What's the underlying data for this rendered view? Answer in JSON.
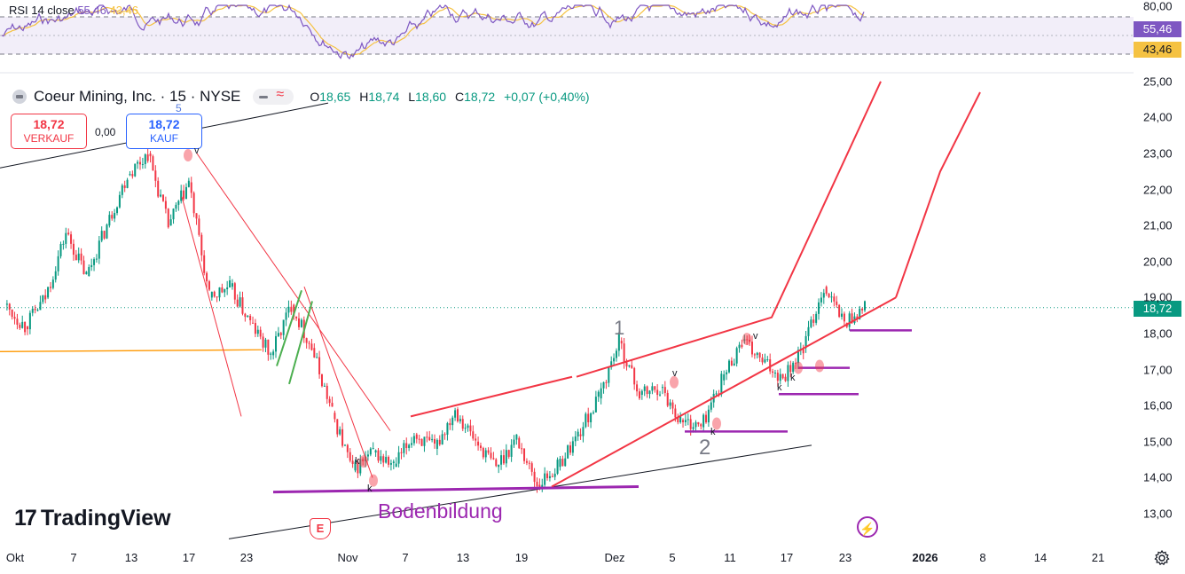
{
  "rsi": {
    "label": "RSI 14 close",
    "value": "55,46",
    "ma_value": "43,46",
    "axis_labels": [
      "80,00"
    ],
    "tag_value": "55,46",
    "tag_ma": "43,46",
    "line_color": "#7e57c2",
    "ma_color": "#f5c242",
    "band_color": "#ede7f6"
  },
  "legend": {
    "symbol": "Coeur Mining, Inc. · 15 · NYSE",
    "o_label": "O",
    "o": "18,65",
    "h_label": "H",
    "h": "18,74",
    "l_label": "L",
    "l": "18,60",
    "c_label": "C",
    "c": "18,72",
    "change": "+0,07 (+0,40%)"
  },
  "trade": {
    "sell_price": "18,72",
    "sell_label": "VERKAUF",
    "spread": "0,00",
    "buy_price": "18,72",
    "buy_label": "KAUF"
  },
  "price_tag": "18,72",
  "brand": "TradingView",
  "annotations": {
    "wave_1": "1",
    "wave_2": "2",
    "wave_5": "5",
    "bottom_text": "Bodenbildung",
    "k_marks": [
      "k",
      "k",
      "k",
      "k",
      "k"
    ],
    "v_marks": [
      "v",
      "v",
      "v"
    ],
    "earnings_label": "E"
  },
  "colors": {
    "up": "#089981",
    "down": "#f23645",
    "trend_red": "#f23645",
    "support_purple": "#9c27b0",
    "orange": "#ff9800",
    "green_line": "#4caf50",
    "current_price_dotted": "#089981"
  },
  "chart_data": {
    "type": "candlestick",
    "timeframe": "15",
    "x_axis": {
      "ticks": [
        "Okt",
        "7",
        "13",
        "17",
        "23",
        "Nov",
        "7",
        "13",
        "19",
        "Dez",
        "5",
        "11",
        "17",
        "23",
        "2026",
        "8",
        "14",
        "21"
      ]
    },
    "y_axis": {
      "ticks": [
        "13,00",
        "14,00",
        "15,00",
        "16,00",
        "17,00",
        "18,00",
        "19,00",
        "20,00",
        "21,00",
        "22,00",
        "23,00",
        "24,00",
        "25,00"
      ],
      "range": [
        12.0,
        25.5
      ]
    },
    "current_price": 18.72,
    "price_path": [
      [
        "Okt",
        18.8
      ],
      [
        "Okt 3",
        18.2
      ],
      [
        "7",
        19.0
      ],
      [
        "9",
        20.8
      ],
      [
        "11",
        19.6
      ],
      [
        "13",
        21.0
      ],
      [
        "15",
        22.4
      ],
      [
        "17",
        23.0
      ],
      [
        "18",
        21.0
      ],
      [
        "20",
        22.2
      ],
      [
        "21",
        19.0
      ],
      [
        "23",
        19.3
      ],
      [
        "25",
        18.3
      ],
      [
        "27",
        17.4
      ],
      [
        "28",
        18.8
      ],
      [
        "30",
        17.6
      ],
      [
        "Nov",
        15.8
      ],
      [
        "Nov 3",
        14.2
      ],
      [
        "5",
        14.7
      ],
      [
        "7",
        14.3
      ],
      [
        "9",
        15.2
      ],
      [
        "11",
        14.8
      ],
      [
        "13",
        15.9
      ],
      [
        "15",
        15.0
      ],
      [
        "17",
        14.3
      ],
      [
        "19",
        15.1
      ],
      [
        "21",
        13.8
      ],
      [
        "23",
        14.3
      ],
      [
        "25",
        15.2
      ],
      [
        "27",
        16.2
      ],
      [
        "Dez",
        17.8
      ],
      [
        "Dez 3",
        16.3
      ],
      [
        "5",
        16.5
      ],
      [
        "7",
        15.6
      ],
      [
        "9",
        15.4
      ],
      [
        "11",
        16.7
      ],
      [
        "13",
        17.8
      ],
      [
        "15",
        17.2
      ],
      [
        "17",
        16.8
      ],
      [
        "19",
        17.6
      ],
      [
        "21",
        19.3
      ],
      [
        "23",
        18.3
      ],
      [
        "24",
        18.72
      ]
    ]
  }
}
